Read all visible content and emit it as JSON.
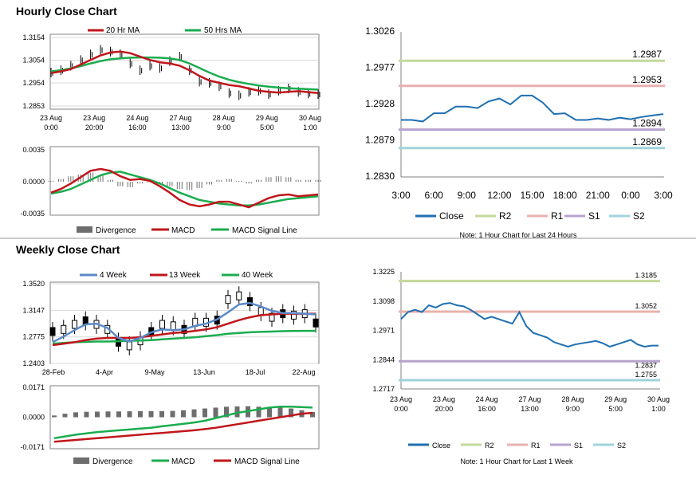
{
  "colors": {
    "ma_short": "#c0161b",
    "ma_long": "#1aac4e",
    "ma_4wk": "#5b8ac8",
    "close": "#1f6fb2",
    "r2": "#c3d99a",
    "r1": "#e8b0ad",
    "s1": "#b7a3cf",
    "s2": "#9fd3dc",
    "divergence": "#6d6d6d",
    "candle": "#000000"
  },
  "hourly": {
    "title": "Hourly Close Chart",
    "price": {
      "type": "line",
      "legend": [
        "20 Hr MA",
        "50 Hrs MA"
      ],
      "yticks": [
        "1.3154",
        "1.3054",
        "1.2954",
        "1.2853"
      ],
      "ytick_values": [
        1.3154,
        1.3054,
        1.2954,
        1.2853
      ],
      "ylim": [
        1.2853,
        1.3154
      ],
      "xticks": [
        {
          "d": "23 Aug",
          "t": "0:00"
        },
        {
          "d": "23 Aug",
          "t": "20:00"
        },
        {
          "d": "24 Aug",
          "t": "16:00"
        },
        {
          "d": "27 Aug",
          "t": "13:00"
        },
        {
          "d": "28 Aug",
          "t": "9:00"
        },
        {
          "d": "29 Aug",
          "t": "5:00"
        },
        {
          "d": "30 Aug",
          "t": "1:00"
        }
      ],
      "series": [
        {
          "name": "20 Hr MA",
          "values": [
            1.2998,
            1.3005,
            1.3015,
            1.3035,
            1.3055,
            1.3075,
            1.3088,
            1.3092,
            1.3085,
            1.307,
            1.3055,
            1.3045,
            1.304,
            1.303,
            1.301,
            1.2985,
            1.2965,
            1.2955,
            1.2945,
            1.294,
            1.293,
            1.292,
            1.2915,
            1.2912,
            1.2915,
            1.2918,
            1.2914,
            1.291
          ]
        },
        {
          "name": "50 Hrs MA",
          "values": [
            1.3005,
            1.301,
            1.3018,
            1.3028,
            1.304,
            1.305,
            1.3058,
            1.3062,
            1.3065,
            1.3066,
            1.3066,
            1.3065,
            1.3062,
            1.3055,
            1.304,
            1.302,
            1.3,
            1.2982,
            1.2968,
            1.2958,
            1.295,
            1.2943,
            1.2938,
            1.2934,
            1.2931,
            1.2929,
            1.2927,
            1.2925
          ]
        }
      ],
      "candles": [
        1.3,
        1.301,
        1.303,
        1.3055,
        1.308,
        1.31,
        1.3092,
        1.308,
        1.304,
        1.301,
        1.303,
        1.302,
        1.305,
        1.307,
        1.301,
        1.296,
        1.2955,
        1.294,
        1.291,
        1.29,
        1.2915,
        1.292,
        1.2905,
        1.292,
        1.293,
        1.2915,
        1.2908,
        1.2905
      ]
    },
    "macd": {
      "type": "line",
      "yticks": [
        "0.0035",
        "0.0000",
        "-0.0035"
      ],
      "ytick_values": [
        0.0035,
        0.0,
        -0.0035
      ],
      "ylim": [
        -0.0035,
        0.0035
      ],
      "legend": [
        "Divergence",
        "MACD",
        "MACD Signal Line"
      ],
      "series": [
        {
          "name": "MACD",
          "values": [
            -0.0012,
            -0.0008,
            -0.0002,
            0.0005,
            0.0012,
            0.0014,
            0.0012,
            0.0006,
            0.0002,
            0.0003,
            0.0001,
            -0.0005,
            -0.0012,
            -0.002,
            -0.0025,
            -0.0027,
            -0.0025,
            -0.0022,
            -0.0022,
            -0.0025,
            -0.0028,
            -0.0023,
            -0.0018,
            -0.0015,
            -0.0014,
            -0.0016,
            -0.0015,
            -0.0014
          ]
        },
        {
          "name": "MACD Signal Line",
          "values": [
            -0.0013,
            -0.0011,
            -0.0008,
            -0.0003,
            0.0002,
            0.0007,
            0.001,
            0.0011,
            0.0008,
            0.0005,
            0.0002,
            -0.0002,
            -0.0007,
            -0.0012,
            -0.0016,
            -0.002,
            -0.0022,
            -0.0024,
            -0.0025,
            -0.0026,
            -0.0026,
            -0.0025,
            -0.0023,
            -0.0021,
            -0.0019,
            -0.0018,
            -0.0017,
            -0.0016
          ]
        }
      ],
      "divergence": [
        0.0001,
        0.0003,
        0.0006,
        0.0008,
        0.001,
        0.0007,
        0.0002,
        -0.0005,
        -0.0006,
        -0.0002,
        -0.0001,
        -0.0003,
        -0.0005,
        -0.0008,
        -0.0009,
        -0.0007,
        -0.0003,
        0.0002,
        0.0003,
        0.0001,
        -0.0002,
        0.0002,
        0.0005,
        0.0006,
        0.0005,
        0.0002,
        0.0002,
        0.0002
      ]
    },
    "levels": {
      "type": "line",
      "yticks": [
        "1.3026",
        "1.2977",
        "1.2928",
        "1.2879",
        "1.2830"
      ],
      "ytick_values": [
        1.3026,
        1.2977,
        1.2928,
        1.2879,
        1.283
      ],
      "ylim": [
        1.283,
        1.3026
      ],
      "xticks": [
        "3:00",
        "6:00",
        "9:00",
        "12:00",
        "15:00",
        "18:00",
        "21:00",
        "0:00",
        "3:00"
      ],
      "series": [
        {
          "name": "Close",
          "values": [
            1.2907,
            1.2907,
            1.2905,
            1.2916,
            1.2916,
            1.2925,
            1.2925,
            1.2923,
            1.2932,
            1.2936,
            1.2928,
            1.294,
            1.294,
            1.293,
            1.2915,
            1.2916,
            1.2907,
            1.2907,
            1.2909,
            1.2907,
            1.291,
            1.2908,
            1.2911,
            1.2913,
            1.2915
          ]
        }
      ],
      "levels": [
        {
          "name": "R2",
          "value": 1.2987,
          "label": "1.2987"
        },
        {
          "name": "R1",
          "value": 1.2953,
          "label": "1.2953"
        },
        {
          "name": "S1",
          "value": 1.2894,
          "label": "1.2894"
        },
        {
          "name": "S2",
          "value": 1.2869,
          "label": "1.2869"
        }
      ],
      "legend": [
        "Close",
        "R2",
        "R1",
        "S1",
        "S2"
      ],
      "note": "Note: 1 Hour Chart for Last 24 Hours"
    }
  },
  "weekly": {
    "title": "Weekly Close Chart",
    "price": {
      "type": "line",
      "legend": [
        "4 Week",
        "13 Week",
        "40 Week"
      ],
      "yticks": [
        "1.3520",
        "1.3147",
        "1.2775",
        "1.2403"
      ],
      "ytick_values": [
        1.352,
        1.3147,
        1.2775,
        1.2403
      ],
      "ylim": [
        1.2403,
        1.352
      ],
      "xticks": [
        "28-Feb",
        "4-Apr",
        "9-May",
        "13-Jun",
        "18-Jul",
        "22-Aug"
      ],
      "series": [
        {
          "name": "4 Week",
          "values": [
            1.27,
            1.278,
            1.287,
            1.295,
            1.296,
            1.29,
            1.276,
            1.271,
            1.276,
            1.284,
            1.288,
            1.287,
            1.288,
            1.293,
            1.296,
            1.302,
            1.312,
            1.323,
            1.325,
            1.32,
            1.314,
            1.311,
            1.311,
            1.31,
            1.309
          ]
        },
        {
          "name": "13 Week",
          "values": [
            1.266,
            1.268,
            1.27,
            1.273,
            1.275,
            1.276,
            1.276,
            1.276,
            1.277,
            1.279,
            1.281,
            1.283,
            1.284,
            1.286,
            1.288,
            1.291,
            1.296,
            1.301,
            1.305,
            1.308,
            1.309,
            1.31,
            1.31,
            1.31,
            1.31
          ]
        },
        {
          "name": "40 Week",
          "values": [
            1.268,
            1.269,
            1.27,
            1.2705,
            1.271,
            1.271,
            1.2715,
            1.272,
            1.2725,
            1.273,
            1.274,
            1.275,
            1.276,
            1.277,
            1.2785,
            1.28,
            1.282,
            1.283,
            1.284,
            1.2845,
            1.285,
            1.2855,
            1.2858,
            1.286,
            1.286
          ]
        }
      ],
      "candles": [
        1.285,
        1.288,
        1.295,
        1.3,
        1.295,
        1.288,
        1.27,
        1.265,
        1.272,
        1.285,
        1.295,
        1.293,
        1.288,
        1.298,
        1.298,
        1.301,
        1.33,
        1.335,
        1.327,
        1.313,
        1.305,
        1.31,
        1.308,
        1.31,
        1.297
      ]
    },
    "macd": {
      "type": "line",
      "yticks": [
        "0.0171",
        "0.0000",
        "-0.0171"
      ],
      "ytick_values": [
        0.0171,
        0.0,
        -0.0171
      ],
      "ylim": [
        -0.0171,
        0.0171
      ],
      "legend": [
        "Divergence",
        "MACD",
        "MACD Signal Line"
      ],
      "series": [
        {
          "name": "MACD",
          "values": [
            -0.012,
            -0.011,
            -0.01,
            -0.0092,
            -0.0085,
            -0.008,
            -0.0075,
            -0.007,
            -0.0065,
            -0.006,
            -0.0052,
            -0.0045,
            -0.0038,
            -0.003,
            -0.002,
            -0.0005,
            0.001,
            0.0025,
            0.0035,
            0.0045,
            0.0055,
            0.006,
            0.006,
            0.0058,
            0.0055
          ]
        },
        {
          "name": "MACD Signal Line",
          "values": [
            -0.014,
            -0.0135,
            -0.013,
            -0.0125,
            -0.012,
            -0.0115,
            -0.011,
            -0.0105,
            -0.01,
            -0.0095,
            -0.009,
            -0.0085,
            -0.008,
            -0.0075,
            -0.0068,
            -0.006,
            -0.005,
            -0.004,
            -0.003,
            -0.002,
            -0.001,
            0.0,
            0.001,
            0.002,
            0.0025
          ]
        },
        {
          "name": "Divergence",
          "values": [
            0.001,
            0.002,
            0.0028,
            0.0031,
            0.0032,
            0.0033,
            0.0033,
            0.0034,
            0.0035,
            0.0035,
            0.0035,
            0.0036,
            0.004,
            0.0045,
            0.005,
            0.0055,
            0.006,
            0.0062,
            0.0063,
            0.006,
            0.0058,
            0.0055,
            0.005,
            0.004,
            0.003
          ]
        }
      ],
      "divergence": [
        0.001,
        0.002,
        0.0028,
        0.0031,
        0.0032,
        0.0033,
        0.0033,
        0.0034,
        0.0035,
        0.0035,
        0.0035,
        0.0036,
        0.004,
        0.0045,
        0.005,
        0.0055,
        0.006,
        0.0062,
        0.0063,
        0.006,
        0.0058,
        0.0055,
        0.005,
        0.004,
        0.003
      ]
    },
    "levels": {
      "type": "line",
      "yticks": [
        "1.3225",
        "1.3098",
        "1.2971",
        "1.2844",
        "1.2717"
      ],
      "ytick_values": [
        1.3225,
        1.3098,
        1.2971,
        1.2844,
        1.2717
      ],
      "ylim": [
        1.2717,
        1.3225
      ],
      "xticks": [
        {
          "d": "23 Aug",
          "t": "0:00"
        },
        {
          "d": "23 Aug",
          "t": "20:00"
        },
        {
          "d": "24 Aug",
          "t": "16:00"
        },
        {
          "d": "27 Aug",
          "t": "13:00"
        },
        {
          "d": "28 Aug",
          "t": "9:00"
        },
        {
          "d": "29 Aug",
          "t": "5:00"
        },
        {
          "d": "30 Aug",
          "t": "1:00"
        }
      ],
      "series": [
        {
          "name": "Close",
          "values": [
            1.302,
            1.305,
            1.306,
            1.305,
            1.308,
            1.307,
            1.3085,
            1.309,
            1.308,
            1.3075,
            1.306,
            1.304,
            1.302,
            1.303,
            1.302,
            1.301,
            1.3,
            1.305,
            1.299,
            1.296,
            1.295,
            1.294,
            1.292,
            1.291,
            1.29,
            1.291,
            1.2915,
            1.292,
            1.2925,
            1.2915,
            1.29,
            1.291,
            1.292,
            1.293,
            1.291,
            1.29,
            1.2905,
            1.2905
          ]
        }
      ],
      "levels": [
        {
          "name": "R2",
          "value": 1.3185,
          "label": "1.3185"
        },
        {
          "name": "R1",
          "value": 1.3052,
          "label": "1.3052"
        },
        {
          "name": "S1",
          "value": 1.2837,
          "label": "1.2837"
        },
        {
          "name": "S2",
          "value": 1.2755,
          "label": "1.2755"
        }
      ],
      "legend": [
        "Close",
        "R2",
        "R1",
        "S1",
        "S2"
      ],
      "note": "Note: 1 Hour Chart for Last 1 Week"
    }
  }
}
